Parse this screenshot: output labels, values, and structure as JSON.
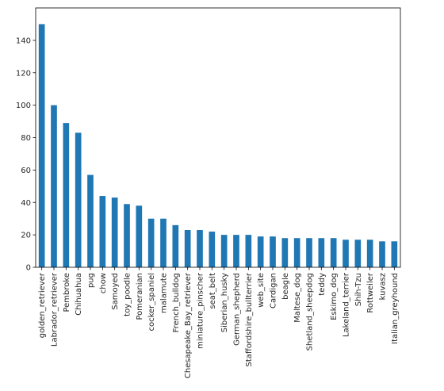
{
  "chart_data": {
    "type": "bar",
    "title": "",
    "xlabel": "",
    "ylabel": "",
    "ylim": [
      0,
      160
    ],
    "yticks": [
      0,
      20,
      40,
      60,
      80,
      100,
      120,
      140
    ],
    "grid": false,
    "bar_color": "#1f77b4",
    "categories": [
      "golden_retriever",
      "Labrador_retriever",
      "Pembroke",
      "Chihuahua",
      "pug",
      "chow",
      "Samoyed",
      "toy_poodle",
      "Pomeranian",
      "cocker_spaniel",
      "malamute",
      "French_bulldog",
      "Chesapeake_Bay_retriever",
      "miniature_pinscher",
      "seat_belt",
      "Siberian_husky",
      "German_shepherd",
      "Staffordshire_bullterrier",
      "web_site",
      "Cardigan",
      "beagle",
      "Maltese_dog",
      "Shetland_sheepdog",
      "teddy",
      "Eskimo_dog",
      "Lakeland_terrier",
      "Shih-Tzu",
      "Rottweiler",
      "kuvasz",
      "Italian_greyhound"
    ],
    "values": [
      150,
      100,
      89,
      83,
      57,
      44,
      43,
      39,
      38,
      30,
      30,
      26,
      23,
      23,
      22,
      20,
      20,
      20,
      19,
      19,
      18,
      18,
      18,
      18,
      18,
      17,
      17,
      17,
      16,
      16
    ]
  }
}
